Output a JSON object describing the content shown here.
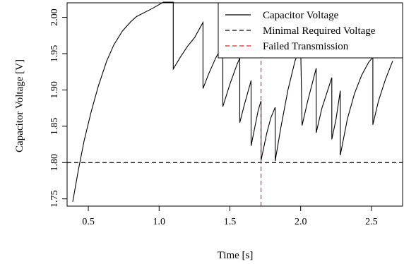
{
  "chart_data": {
    "type": "line",
    "xlabel": "Time [s]",
    "ylabel": "Capacitor Voltage [V]",
    "xlim": [
      0.35,
      2.72
    ],
    "ylim": [
      1.74,
      2.02
    ],
    "x_ticks": [
      0.5,
      1.0,
      1.5,
      2.0,
      2.5
    ],
    "x_tick_labels": [
      "0.5",
      "1.0",
      "1.5",
      "2.0",
      "2.5"
    ],
    "y_ticks": [
      1.75,
      1.8,
      1.85,
      1.9,
      1.95,
      2.0
    ],
    "y_tick_labels": [
      "1.75",
      "1.80",
      "1.85",
      "1.90",
      "1.95",
      "2.00"
    ],
    "legend_position": "top-right",
    "legend": [
      {
        "label": "Capacitor Voltage",
        "color": "#000000",
        "dash": "solid"
      },
      {
        "label": "Minimal Required Voltage",
        "color": "#000000",
        "dash": "dashed"
      },
      {
        "label": "Failed Transmission",
        "color": "#e0202a",
        "dash": "dashed"
      }
    ],
    "series": [
      {
        "name": "Capacitor Voltage",
        "color": "#000000",
        "points": [
          [
            0.39,
            1.746
          ],
          [
            0.43,
            1.79
          ],
          [
            0.47,
            1.83
          ],
          [
            0.52,
            1.87
          ],
          [
            0.57,
            1.905
          ],
          [
            0.63,
            1.94
          ],
          [
            0.68,
            1.962
          ],
          [
            0.74,
            1.981
          ],
          [
            0.8,
            1.994
          ],
          [
            0.84,
            2.001
          ],
          [
            0.95,
            2.012
          ],
          [
            1.03,
            2.021
          ],
          [
            1.1,
            2.021
          ],
          [
            1.1,
            1.929
          ],
          [
            1.15,
            1.945
          ],
          [
            1.2,
            1.96
          ],
          [
            1.25,
            1.972
          ],
          [
            1.31,
            1.993
          ],
          [
            1.31,
            1.902
          ],
          [
            1.35,
            1.922
          ],
          [
            1.4,
            1.944
          ],
          [
            1.45,
            1.962
          ],
          [
            1.45,
            1.877
          ],
          [
            1.5,
            1.908
          ],
          [
            1.55,
            1.935
          ],
          [
            1.57,
            1.944
          ],
          [
            1.57,
            1.855
          ],
          [
            1.6,
            1.878
          ],
          [
            1.65,
            1.913
          ],
          [
            1.65,
            1.823
          ],
          [
            1.7,
            1.872
          ],
          [
            1.72,
            1.885
          ],
          [
            1.72,
            1.803
          ],
          [
            1.76,
            1.84
          ],
          [
            1.79,
            1.862
          ],
          [
            1.82,
            1.876
          ],
          [
            1.82,
            1.802
          ],
          [
            1.86,
            1.848
          ],
          [
            1.91,
            1.9
          ],
          [
            1.96,
            1.94
          ],
          [
            2.0,
            1.96
          ],
          [
            2.01,
            1.851
          ],
          [
            2.05,
            1.885
          ],
          [
            2.11,
            1.93
          ],
          [
            2.11,
            1.841
          ],
          [
            2.15,
            1.875
          ],
          [
            2.2,
            1.905
          ],
          [
            2.22,
            1.917
          ],
          [
            2.22,
            1.832
          ],
          [
            2.25,
            1.86
          ],
          [
            2.28,
            1.899
          ],
          [
            2.28,
            1.81
          ],
          [
            2.33,
            1.86
          ],
          [
            2.38,
            1.895
          ],
          [
            2.43,
            1.92
          ],
          [
            2.48,
            1.938
          ],
          [
            2.51,
            1.945
          ],
          [
            2.51,
            1.852
          ],
          [
            2.55,
            1.885
          ],
          [
            2.6,
            1.915
          ],
          [
            2.65,
            1.94
          ]
        ]
      },
      {
        "name": "Minimal Required Voltage",
        "color": "#000000",
        "points": [
          [
            0.35,
            1.8
          ],
          [
            2.72,
            1.8
          ]
        ]
      },
      {
        "name": "Failed Transmission",
        "color": "#e0202a",
        "points": [
          [
            1.72,
            1.74
          ],
          [
            1.72,
            2.02
          ]
        ]
      }
    ]
  }
}
